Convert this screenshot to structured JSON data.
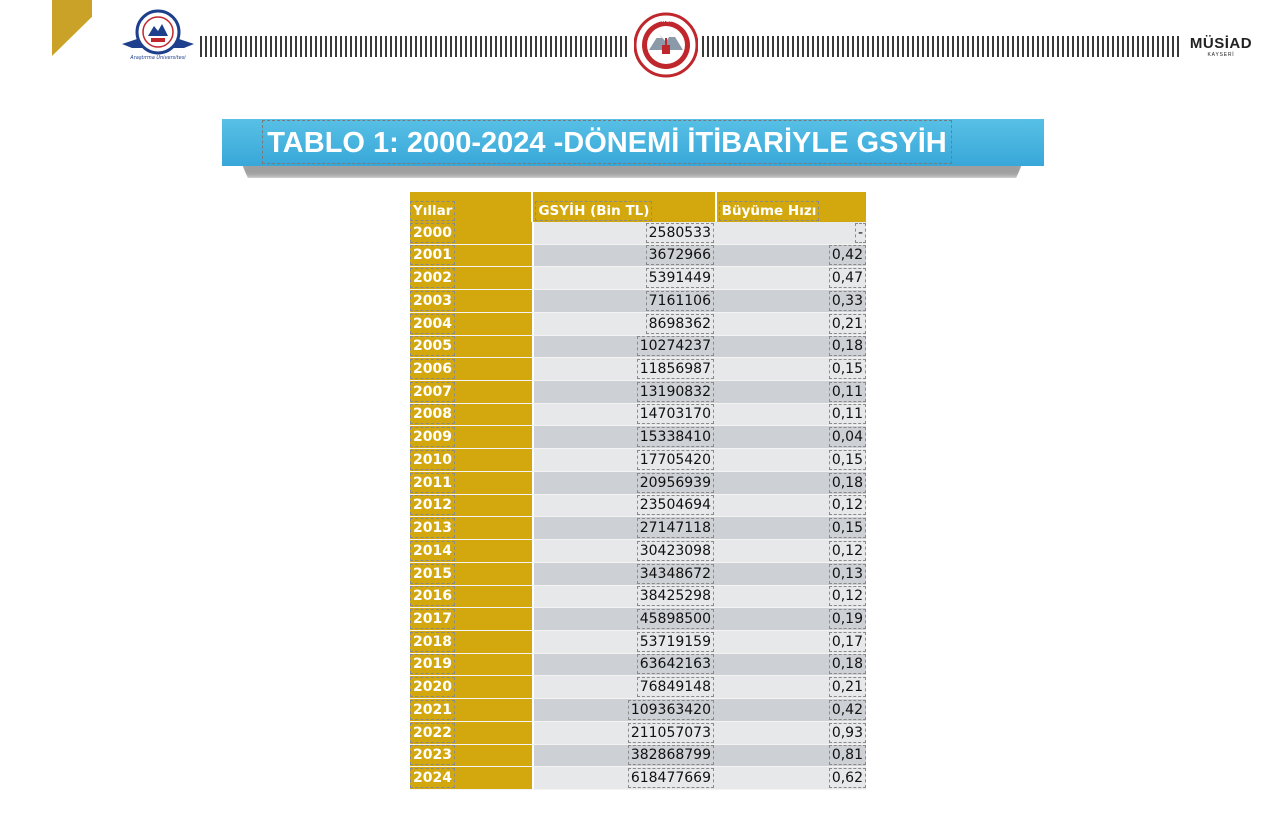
{
  "header": {
    "left_logo_name": "Erciyes Üniversitesi",
    "left_logo_year": "1978",
    "center_logo_name": "T.C. Kayseri Valiliği",
    "right_logo_brand": "MÜSİAD",
    "right_logo_city": "KAYSERİ"
  },
  "title": "TABLO 1: 2000-2024 -DÖNEMİ İTİBARİYLE GSYİH",
  "table": {
    "columns": [
      "Yıllar",
      "GSYİH (Bin TL)",
      "Büyüme Hızı"
    ],
    "rows": [
      {
        "year": "2000",
        "gdp": "2580533",
        "growth": "-"
      },
      {
        "year": "2001",
        "gdp": "3672966",
        "growth": "0,42"
      },
      {
        "year": "2002",
        "gdp": "5391449",
        "growth": "0,47"
      },
      {
        "year": "2003",
        "gdp": "7161106",
        "growth": "0,33"
      },
      {
        "year": "2004",
        "gdp": "8698362",
        "growth": "0,21"
      },
      {
        "year": "2005",
        "gdp": "10274237",
        "growth": "0,18"
      },
      {
        "year": "2006",
        "gdp": "11856987",
        "growth": "0,15"
      },
      {
        "year": "2007",
        "gdp": "13190832",
        "growth": "0,11"
      },
      {
        "year": "2008",
        "gdp": "14703170",
        "growth": "0,11"
      },
      {
        "year": "2009",
        "gdp": "15338410",
        "growth": "0,04"
      },
      {
        "year": "2010",
        "gdp": "17705420",
        "growth": "0,15"
      },
      {
        "year": "2011",
        "gdp": "20956939",
        "growth": "0,18"
      },
      {
        "year": "2012",
        "gdp": "23504694",
        "growth": "0,12"
      },
      {
        "year": "2013",
        "gdp": "27147118",
        "growth": "0,15"
      },
      {
        "year": "2014",
        "gdp": "30423098",
        "growth": "0,12"
      },
      {
        "year": "2015",
        "gdp": "34348672",
        "growth": "0,13"
      },
      {
        "year": "2016",
        "gdp": "38425298",
        "growth": "0,12"
      },
      {
        "year": "2017",
        "gdp": "45898500",
        "growth": "0,19"
      },
      {
        "year": "2018",
        "gdp": "53719159",
        "growth": "0,17"
      },
      {
        "year": "2019",
        "gdp": "63642163",
        "growth": "0,18"
      },
      {
        "year": "2020",
        "gdp": "76849148",
        "growth": "0,21"
      },
      {
        "year": "2021",
        "gdp": "109363420",
        "growth": "0,42"
      },
      {
        "year": "2022",
        "gdp": "211057073",
        "growth": "0,93"
      },
      {
        "year": "2023",
        "gdp": "382868799",
        "growth": "0,81"
      },
      {
        "year": "2024",
        "gdp": "618477669",
        "growth": "0,62"
      }
    ]
  },
  "colors": {
    "title_bar": "#3aa9da",
    "gold": "#d2a80e",
    "row_light": "#e6e8ea",
    "row_dark": "#cdd0d4"
  }
}
